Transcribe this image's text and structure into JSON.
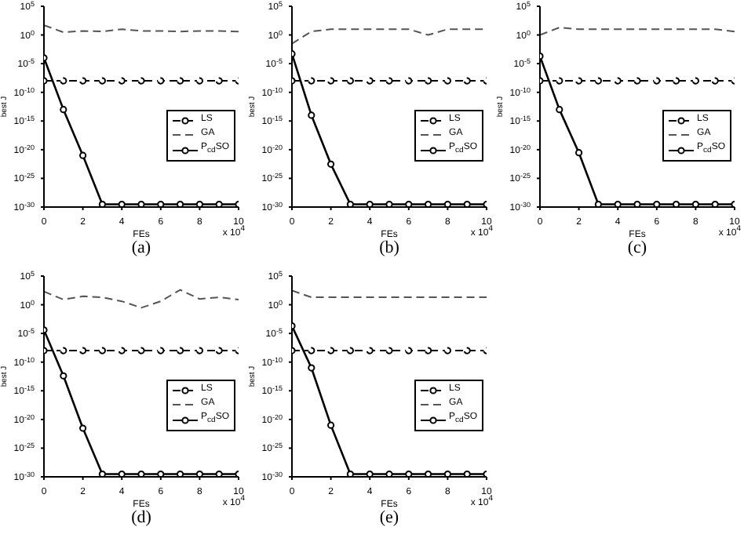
{
  "chart_data": [
    {
      "type": "line",
      "title": "(a)",
      "xlabel": "FEs",
      "ylabel": "best J",
      "annotations": [
        "x 10$^{4}$"
      ],
      "x": [
        0,
        1,
        2,
        3,
        4,
        5,
        6,
        7,
        8,
        9,
        10
      ],
      "xlim": [
        0,
        10
      ],
      "xticks": [
        0,
        2,
        4,
        6,
        8,
        10
      ],
      "log": "y",
      "ylim": [
        1e-30,
        100000.0
      ],
      "yticks": [
        {
          "value": 100000.0,
          "label": "10$^{5}$"
        },
        {
          "value": 1,
          "label": "10$^{0}$"
        },
        {
          "value": 1e-05,
          "label": "10$^{-5}$"
        },
        {
          "value": 1e-10,
          "label": "10$^{-10}$"
        },
        {
          "value": 1e-15,
          "label": "10$^{-15}$"
        },
        {
          "value": 1e-20,
          "label": "10$^{-20}$"
        },
        {
          "value": 1e-25,
          "label": "10$^{-25}$"
        },
        {
          "value": 1e-30,
          "label": "10$^{-30}$"
        }
      ],
      "legend": "right",
      "series": [
        {
          "name": "LS",
          "color": "#000000",
          "line_style": "dashed",
          "marker": "circle",
          "values": [
            1e-08,
            1e-08,
            1e-08,
            1e-08,
            1e-08,
            1e-08,
            1e-08,
            1e-08,
            1e-08,
            1e-08,
            1e-08
          ]
        },
        {
          "name": "GA",
          "color": "#555555",
          "line_style": "dashed",
          "marker": "none",
          "values": [
            50,
            3,
            5,
            4,
            10,
            5,
            5,
            4,
            5,
            5,
            4
          ]
        },
        {
          "name": "P$_{cd}$SO",
          "color": "#000000",
          "line_style": "solid",
          "marker": "circle",
          "values": [
            0.0001,
            1e-13,
            1e-21,
            3e-30,
            3e-30,
            3e-30,
            3e-30,
            3e-30,
            3e-30,
            3e-30,
            3e-30
          ]
        }
      ]
    },
    {
      "type": "line",
      "title": "(b)",
      "xlabel": "FEs",
      "ylabel": "best J",
      "annotations": [
        "x 10$^{4}$"
      ],
      "x": [
        0,
        1,
        2,
        3,
        4,
        5,
        6,
        7,
        8,
        9,
        10
      ],
      "xlim": [
        0,
        10
      ],
      "xticks": [
        0,
        2,
        4,
        6,
        8,
        10
      ],
      "log": "y",
      "ylim": [
        1e-30,
        100000.0
      ],
      "yticks": [
        {
          "value": 100000.0,
          "label": "10$^{5}$"
        },
        {
          "value": 1,
          "label": "10$^{0}$"
        },
        {
          "value": 1e-05,
          "label": "10$^{-5}$"
        },
        {
          "value": 1e-10,
          "label": "10$^{-10}$"
        },
        {
          "value": 1e-15,
          "label": "10$^{-15}$"
        },
        {
          "value": 1e-20,
          "label": "10$^{-20}$"
        },
        {
          "value": 1e-25,
          "label": "10$^{-25}$"
        },
        {
          "value": 1e-30,
          "label": "10$^{-30}$"
        }
      ],
      "legend": "right",
      "series": [
        {
          "name": "LS",
          "color": "#000000",
          "line_style": "dashed",
          "marker": "circle",
          "values": [
            1e-08,
            1e-08,
            1e-08,
            1e-08,
            1e-08,
            1e-08,
            1e-08,
            1e-08,
            1e-08,
            1e-08,
            1e-08
          ]
        },
        {
          "name": "GA",
          "color": "#555555",
          "line_style": "dashed",
          "marker": "none",
          "values": [
            0.03,
            4,
            10,
            10,
            10,
            10,
            10,
            1,
            10,
            10,
            10
          ]
        },
        {
          "name": "P$_{cd}$SO",
          "color": "#000000",
          "line_style": "solid",
          "marker": "circle",
          "values": [
            0.0005,
            1e-14,
            3e-23,
            3e-30,
            3e-30,
            3e-30,
            3e-30,
            3e-30,
            3e-30,
            3e-30,
            3e-30
          ]
        }
      ]
    },
    {
      "type": "line",
      "title": "(c)",
      "xlabel": "FEs",
      "ylabel": "best J",
      "annotations": [
        "x 10$^{4}$"
      ],
      "x": [
        0,
        1,
        2,
        3,
        4,
        5,
        6,
        7,
        8,
        9,
        10
      ],
      "xlim": [
        0,
        10
      ],
      "xticks": [
        0,
        2,
        4,
        6,
        8,
        10
      ],
      "log": "y",
      "ylim": [
        1e-30,
        100000.0
      ],
      "yticks": [
        {
          "value": 100000.0,
          "label": "10$^{5}$"
        },
        {
          "value": 1,
          "label": "10$^{0}$"
        },
        {
          "value": 1e-05,
          "label": "10$^{-5}$"
        },
        {
          "value": 1e-10,
          "label": "10$^{-10}$"
        },
        {
          "value": 1e-15,
          "label": "10$^{-15}$"
        },
        {
          "value": 1e-20,
          "label": "10$^{-20}$"
        },
        {
          "value": 1e-25,
          "label": "10$^{-25}$"
        },
        {
          "value": 1e-30,
          "label": "10$^{-30}$"
        }
      ],
      "legend": "right",
      "series": [
        {
          "name": "LS",
          "color": "#000000",
          "line_style": "dashed",
          "marker": "circle",
          "values": [
            1e-08,
            1e-08,
            1e-08,
            1e-08,
            1e-08,
            1e-08,
            1e-08,
            1e-08,
            1e-08,
            1e-08,
            1e-08
          ]
        },
        {
          "name": "GA",
          "color": "#555555",
          "line_style": "dashed",
          "marker": "none",
          "values": [
            1,
            20,
            10,
            10,
            10,
            10,
            10,
            10,
            10,
            10,
            4
          ]
        },
        {
          "name": "P$_{cd}$SO",
          "color": "#000000",
          "line_style": "solid",
          "marker": "circle",
          "values": [
            0.0002,
            1e-13,
            3e-21,
            3e-30,
            3e-30,
            3e-30,
            3e-30,
            3e-30,
            3e-30,
            3e-30,
            3e-30
          ]
        }
      ]
    },
    {
      "type": "line",
      "title": "(d)",
      "xlabel": "FEs",
      "ylabel": "best J",
      "annotations": [
        "x 10$^{4}$"
      ],
      "x": [
        0,
        1,
        2,
        3,
        4,
        5,
        6,
        7,
        8,
        9,
        10
      ],
      "xlim": [
        0,
        10
      ],
      "xticks": [
        0,
        2,
        4,
        6,
        8,
        10
      ],
      "log": "y",
      "ylim": [
        1e-30,
        100000.0
      ],
      "yticks": [
        {
          "value": 100000.0,
          "label": "10$^{5}$"
        },
        {
          "value": 1,
          "label": "10$^{0}$"
        },
        {
          "value": 1e-05,
          "label": "10$^{-5}$"
        },
        {
          "value": 1e-10,
          "label": "10$^{-10}$"
        },
        {
          "value": 1e-15,
          "label": "10$^{-15}$"
        },
        {
          "value": 1e-20,
          "label": "10$^{-20}$"
        },
        {
          "value": 1e-25,
          "label": "10$^{-25}$"
        },
        {
          "value": 1e-30,
          "label": "10$^{-30}$"
        }
      ],
      "legend": "right",
      "series": [
        {
          "name": "LS",
          "color": "#000000",
          "line_style": "dashed",
          "marker": "circle",
          "values": [
            1e-08,
            1e-08,
            1e-08,
            1e-08,
            1e-08,
            1e-08,
            1e-08,
            1e-08,
            1e-08,
            1e-08,
            1e-08
          ]
        },
        {
          "name": "GA",
          "color": "#555555",
          "line_style": "dashed",
          "marker": "none",
          "values": [
            200,
            8,
            30,
            20,
            4,
            0.3,
            4,
            400,
            10,
            20,
            8
          ]
        },
        {
          "name": "P$_{cd}$SO",
          "color": "#000000",
          "line_style": "solid",
          "marker": "circle",
          "values": [
            4e-05,
            4e-13,
            3e-22,
            3e-30,
            3e-30,
            3e-30,
            3e-30,
            3e-30,
            3e-30,
            3e-30,
            3e-30
          ]
        }
      ]
    },
    {
      "type": "line",
      "title": "(e)",
      "xlabel": "FEs",
      "ylabel": "best J",
      "annotations": [
        "x 10$^{4}$"
      ],
      "x": [
        0,
        1,
        2,
        3,
        4,
        5,
        6,
        7,
        8,
        9,
        10
      ],
      "xlim": [
        0,
        10
      ],
      "xticks": [
        0,
        2,
        4,
        6,
        8,
        10
      ],
      "log": "y",
      "ylim": [
        1e-30,
        100000.0
      ],
      "yticks": [
        {
          "value": 100000.0,
          "label": "10$^{5}$"
        },
        {
          "value": 1,
          "label": "10$^{0}$"
        },
        {
          "value": 1e-05,
          "label": "10$^{-5}$"
        },
        {
          "value": 1e-10,
          "label": "10$^{-10}$"
        },
        {
          "value": 1e-15,
          "label": "10$^{-15}$"
        },
        {
          "value": 1e-20,
          "label": "10$^{-20}$"
        },
        {
          "value": 1e-25,
          "label": "10$^{-25}$"
        },
        {
          "value": 1e-30,
          "label": "10$^{-30}$"
        }
      ],
      "legend": "right",
      "series": [
        {
          "name": "LS",
          "color": "#000000",
          "line_style": "dashed",
          "marker": "circle",
          "values": [
            1e-08,
            1e-08,
            1e-08,
            1e-08,
            1e-08,
            1e-08,
            1e-08,
            1e-08,
            1e-08,
            1e-08,
            1e-08
          ]
        },
        {
          "name": "GA",
          "color": "#555555",
          "line_style": "dashed",
          "marker": "none",
          "values": [
            300,
            20,
            20,
            20,
            20,
            20,
            20,
            20,
            20,
            20,
            20
          ]
        },
        {
          "name": "P$_{cd}$SO",
          "color": "#000000",
          "line_style": "solid",
          "marker": "circle",
          "values": [
            0.0002,
            1e-11,
            1e-21,
            3e-30,
            3e-30,
            3e-30,
            3e-30,
            3e-30,
            3e-30,
            3e-30,
            3e-30
          ]
        }
      ]
    }
  ]
}
